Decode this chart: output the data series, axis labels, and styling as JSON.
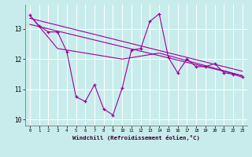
{
  "xlabel": "Windchill (Refroidissement éolien,°C)",
  "background_color": "#c8ecec",
  "line_color": "#990099",
  "grid_color": "#ffffff",
  "x_data": [
    0,
    1,
    2,
    3,
    4,
    5,
    6,
    7,
    8,
    9,
    10,
    11,
    12,
    13,
    14,
    15,
    16,
    17,
    18,
    19,
    20,
    21,
    22,
    23
  ],
  "y_main": [
    13.45,
    13.1,
    12.9,
    12.9,
    12.25,
    10.75,
    10.6,
    11.15,
    10.35,
    10.15,
    11.05,
    12.3,
    12.35,
    13.25,
    13.5,
    12.05,
    11.55,
    12.0,
    11.75,
    11.75,
    11.85,
    11.55,
    11.5,
    11.4
  ],
  "trend1_x": [
    0,
    23
  ],
  "trend1_y": [
    13.35,
    11.6
  ],
  "trend2_x": [
    0,
    23
  ],
  "trend2_y": [
    13.15,
    11.45
  ],
  "trend3_x": [
    0,
    3,
    10,
    14,
    23
  ],
  "trend3_y": [
    13.45,
    12.35,
    12.0,
    12.2,
    11.45
  ],
  "ylim": [
    9.8,
    13.8
  ],
  "yticks": [
    10,
    11,
    12,
    13
  ],
  "xlim": [
    -0.5,
    23.5
  ],
  "xticks": [
    0,
    1,
    2,
    3,
    4,
    5,
    6,
    7,
    8,
    9,
    10,
    11,
    12,
    13,
    14,
    15,
    16,
    17,
    18,
    19,
    20,
    21,
    22,
    23
  ]
}
